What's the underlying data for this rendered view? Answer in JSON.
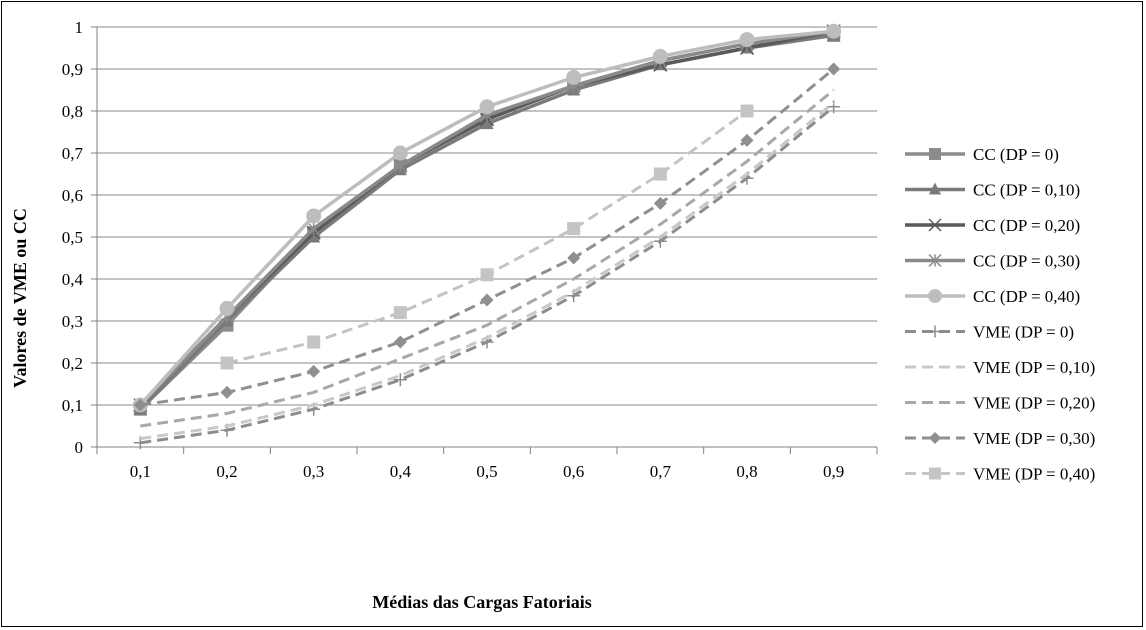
{
  "chart_data": {
    "type": "line",
    "title": "",
    "xlabel": "Médias das Cargas Fatoriais",
    "ylabel": "Valores de VME ou CC",
    "categories": [
      "0,1",
      "0,2",
      "0,3",
      "0,4",
      "0,5",
      "0,6",
      "0,7",
      "0,8",
      "0,9"
    ],
    "x": [
      0.1,
      0.2,
      0.3,
      0.4,
      0.5,
      0.6,
      0.7,
      0.8,
      0.9
    ],
    "ylim": [
      0,
      1
    ],
    "yticks": [
      0,
      0.1,
      0.2,
      0.3,
      0.4,
      0.5,
      0.6,
      0.7,
      0.8,
      0.9,
      1
    ],
    "ytick_labels": [
      "0",
      "0,1",
      "0,2",
      "0,3",
      "0,4",
      "0,5",
      "0,6",
      "0,7",
      "0,8",
      "0,9",
      "1"
    ],
    "grid": "horizontal",
    "legend_position": "right",
    "series": [
      {
        "name": "CC (DP = 0)",
        "color": "#8c8c8c",
        "dash": "solid",
        "marker": "square",
        "values": [
          0.09,
          0.29,
          0.51,
          0.67,
          0.78,
          0.86,
          0.92,
          0.96,
          0.98
        ]
      },
      {
        "name": "CC (DP = 0,10)",
        "color": "#7a7a7a",
        "dash": "solid",
        "marker": "triangle",
        "values": [
          0.09,
          0.3,
          0.5,
          0.66,
          0.77,
          0.85,
          0.91,
          0.95,
          0.98
        ]
      },
      {
        "name": "CC (DP = 0,20)",
        "color": "#5a5a5a",
        "dash": "solid",
        "marker": "x",
        "values": [
          0.1,
          0.31,
          0.51,
          0.67,
          0.78,
          0.86,
          0.91,
          0.95,
          0.99
        ]
      },
      {
        "name": "CC (DP = 0,30)",
        "color": "#8a8a8a",
        "dash": "solid",
        "marker": "star",
        "values": [
          0.1,
          0.31,
          0.52,
          0.67,
          0.79,
          0.86,
          0.92,
          0.96,
          0.99
        ]
      },
      {
        "name": "CC (DP = 0,40)",
        "color": "#bdbdbd",
        "dash": "solid",
        "marker": "circle",
        "values": [
          0.1,
          0.33,
          0.55,
          0.7,
          0.81,
          0.88,
          0.93,
          0.97,
          0.99
        ]
      },
      {
        "name": "VME (DP = 0)",
        "color": "#8c8c8c",
        "dash": "dash",
        "marker": "plus",
        "values": [
          0.01,
          0.04,
          0.09,
          0.16,
          0.25,
          0.36,
          0.49,
          0.64,
          0.81
        ]
      },
      {
        "name": "VME (DP = 0,10)",
        "color": "#c8c8c8",
        "dash": "dash",
        "marker": "none",
        "values": [
          0.02,
          0.05,
          0.1,
          0.17,
          0.26,
          0.37,
          0.5,
          0.65,
          0.82
        ]
      },
      {
        "name": "VME (DP = 0,20)",
        "color": "#a8a8a8",
        "dash": "dash",
        "marker": "none",
        "values": [
          0.05,
          0.08,
          0.13,
          0.21,
          0.29,
          0.4,
          0.53,
          0.68,
          0.85
        ]
      },
      {
        "name": "VME (DP = 0,30)",
        "color": "#8f8f8f",
        "dash": "dash",
        "marker": "diamond",
        "values": [
          0.1,
          0.13,
          0.18,
          0.25,
          0.35,
          0.45,
          0.58,
          0.73,
          0.9
        ]
      },
      {
        "name": "VME (DP = 0,40)",
        "color": "#c4c4c4",
        "dash": "dash",
        "marker": "square",
        "values": [
          null,
          0.2,
          0.25,
          0.32,
          0.41,
          0.52,
          0.65,
          0.8,
          null
        ]
      }
    ]
  }
}
